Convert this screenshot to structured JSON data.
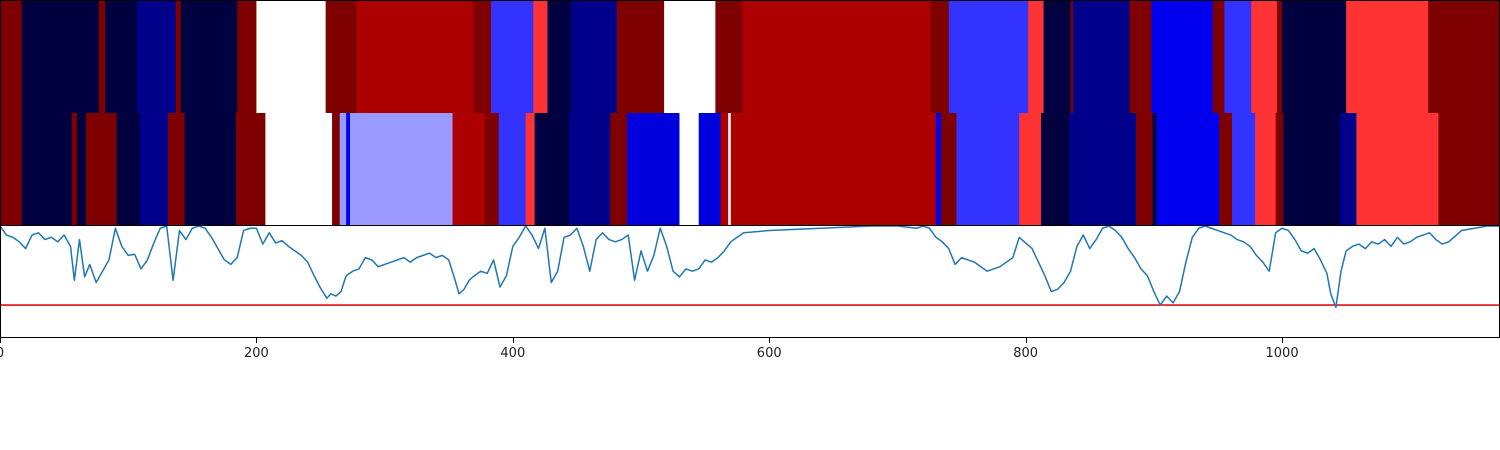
{
  "chart_data": [
    {
      "type": "heatmap",
      "name": "band-top",
      "xlim": [
        0,
        1170
      ],
      "segments": [
        {
          "start": 0,
          "end": 17,
          "color": "#7f0000"
        },
        {
          "start": 17,
          "end": 77,
          "color": "#000040"
        },
        {
          "start": 77,
          "end": 82,
          "color": "#7f0000"
        },
        {
          "start": 82,
          "end": 107,
          "color": "#000040"
        },
        {
          "start": 107,
          "end": 137,
          "color": "#00008b"
        },
        {
          "start": 137,
          "end": 141,
          "color": "#7f0000"
        },
        {
          "start": 141,
          "end": 185,
          "color": "#000040"
        },
        {
          "start": 185,
          "end": 200,
          "color": "#7f0000"
        },
        {
          "start": 200,
          "end": 254,
          "color": "#ffffff"
        },
        {
          "start": 254,
          "end": 278,
          "color": "#7f0000"
        },
        {
          "start": 278,
          "end": 369,
          "color": "#ad0000"
        },
        {
          "start": 369,
          "end": 383,
          "color": "#7f0000"
        },
        {
          "start": 383,
          "end": 416,
          "color": "#3333ff"
        },
        {
          "start": 416,
          "end": 427,
          "color": "#ff3333"
        },
        {
          "start": 427,
          "end": 445,
          "color": "#000040"
        },
        {
          "start": 445,
          "end": 481,
          "color": "#00008b"
        },
        {
          "start": 481,
          "end": 518,
          "color": "#7f0000"
        },
        {
          "start": 518,
          "end": 558,
          "color": "#ffffff"
        },
        {
          "start": 558,
          "end": 579,
          "color": "#7f0000"
        },
        {
          "start": 579,
          "end": 726,
          "color": "#ad0000"
        },
        {
          "start": 726,
          "end": 740,
          "color": "#7f0000"
        },
        {
          "start": 740,
          "end": 802,
          "color": "#3333ff"
        },
        {
          "start": 802,
          "end": 814,
          "color": "#ff3333"
        },
        {
          "start": 814,
          "end": 835,
          "color": "#000040"
        },
        {
          "start": 835,
          "end": 837,
          "color": "#7f0000"
        },
        {
          "start": 837,
          "end": 881,
          "color": "#00008b"
        },
        {
          "start": 881,
          "end": 898,
          "color": "#7f0000"
        },
        {
          "start": 898,
          "end": 946,
          "color": "#0000ee"
        },
        {
          "start": 946,
          "end": 955,
          "color": "#7f0000"
        },
        {
          "start": 955,
          "end": 976,
          "color": "#3333ff"
        },
        {
          "start": 976,
          "end": 996,
          "color": "#ff3333"
        },
        {
          "start": 996,
          "end": 1000,
          "color": "#7f0000"
        },
        {
          "start": 1000,
          "end": 1050,
          "color": "#000040"
        },
        {
          "start": 1050,
          "end": 1114,
          "color": "#ff3333"
        },
        {
          "start": 1114,
          "end": 1170,
          "color": "#7f0000"
        }
      ]
    },
    {
      "type": "heatmap",
      "name": "band-mid",
      "xlim": [
        0,
        1170
      ],
      "segments": [
        {
          "start": 0,
          "end": 17,
          "color": "#7f0000"
        },
        {
          "start": 17,
          "end": 56,
          "color": "#000040"
        },
        {
          "start": 56,
          "end": 60,
          "color": "#7f0000"
        },
        {
          "start": 60,
          "end": 67,
          "color": "#000040"
        },
        {
          "start": 67,
          "end": 70,
          "color": "#7f0000"
        },
        {
          "start": 70,
          "end": 91,
          "color": "#7f0000"
        },
        {
          "start": 91,
          "end": 109,
          "color": "#000040"
        },
        {
          "start": 109,
          "end": 131,
          "color": "#00008b"
        },
        {
          "start": 131,
          "end": 144,
          "color": "#7f0000"
        },
        {
          "start": 144,
          "end": 184,
          "color": "#000040"
        },
        {
          "start": 184,
          "end": 207,
          "color": "#7f0000"
        },
        {
          "start": 207,
          "end": 259,
          "color": "#ffffff"
        },
        {
          "start": 259,
          "end": 265,
          "color": "#7f0000"
        },
        {
          "start": 265,
          "end": 270,
          "color": "#9999ff"
        },
        {
          "start": 270,
          "end": 273,
          "color": "#0000ee"
        },
        {
          "start": 273,
          "end": 353,
          "color": "#9999ff"
        },
        {
          "start": 353,
          "end": 378,
          "color": "#ad0000"
        },
        {
          "start": 378,
          "end": 389,
          "color": "#7f0000"
        },
        {
          "start": 389,
          "end": 410,
          "color": "#3333ff"
        },
        {
          "start": 410,
          "end": 417,
          "color": "#ff3333"
        },
        {
          "start": 417,
          "end": 444,
          "color": "#000040"
        },
        {
          "start": 444,
          "end": 476,
          "color": "#00008b"
        },
        {
          "start": 476,
          "end": 489,
          "color": "#7f0000"
        },
        {
          "start": 489,
          "end": 530,
          "color": "#0000dd"
        },
        {
          "start": 530,
          "end": 545,
          "color": "#ffffff"
        },
        {
          "start": 545,
          "end": 562,
          "color": "#0000dd"
        },
        {
          "start": 562,
          "end": 568,
          "color": "#ad0000"
        },
        {
          "start": 568,
          "end": 570,
          "color": "#ffffff"
        },
        {
          "start": 570,
          "end": 730,
          "color": "#ad0000"
        },
        {
          "start": 730,
          "end": 734,
          "color": "#0000ee"
        },
        {
          "start": 734,
          "end": 746,
          "color": "#7f0000"
        },
        {
          "start": 746,
          "end": 795,
          "color": "#3333ff"
        },
        {
          "start": 795,
          "end": 812,
          "color": "#ff3333"
        },
        {
          "start": 812,
          "end": 834,
          "color": "#000040"
        },
        {
          "start": 834,
          "end": 886,
          "color": "#00008b"
        },
        {
          "start": 886,
          "end": 899,
          "color": "#7f0000"
        },
        {
          "start": 899,
          "end": 902,
          "color": "#000040"
        },
        {
          "start": 902,
          "end": 951,
          "color": "#0000ee"
        },
        {
          "start": 951,
          "end": 961,
          "color": "#7f0000"
        },
        {
          "start": 961,
          "end": 979,
          "color": "#3333ff"
        },
        {
          "start": 979,
          "end": 995,
          "color": "#ff3333"
        },
        {
          "start": 995,
          "end": 1001,
          "color": "#7f0000"
        },
        {
          "start": 1001,
          "end": 1045,
          "color": "#000040"
        },
        {
          "start": 1045,
          "end": 1058,
          "color": "#00008b"
        },
        {
          "start": 1058,
          "end": 1122,
          "color": "#ff3333"
        },
        {
          "start": 1122,
          "end": 1170,
          "color": "#7f0000"
        }
      ]
    },
    {
      "type": "line",
      "name": "line-panel",
      "xlim": [
        0,
        1170
      ],
      "ylim": [
        0,
        1
      ],
      "threshold": 0.3,
      "threshold_color": "#e01010",
      "line_color": "#1f77b4",
      "x": [
        0,
        5,
        10,
        15,
        20,
        25,
        30,
        35,
        40,
        45,
        50,
        55,
        58,
        62,
        66,
        70,
        75,
        80,
        85,
        90,
        95,
        100,
        105,
        110,
        115,
        120,
        125,
        130,
        135,
        140,
        145,
        150,
        155,
        160,
        165,
        170,
        175,
        180,
        185,
        190,
        195,
        200,
        205,
        210,
        215,
        220,
        225,
        230,
        235,
        240,
        245,
        250,
        255,
        258,
        262,
        266,
        270,
        275,
        280,
        285,
        290,
        295,
        300,
        305,
        310,
        315,
        320,
        325,
        330,
        335,
        340,
        345,
        350,
        355,
        358,
        362,
        366,
        370,
        375,
        380,
        385,
        390,
        395,
        400,
        405,
        410,
        415,
        420,
        425,
        430,
        435,
        440,
        445,
        450,
        455,
        460,
        465,
        470,
        475,
        480,
        485,
        490,
        495,
        500,
        505,
        510,
        515,
        520,
        525,
        530,
        535,
        540,
        545,
        550,
        555,
        560,
        565,
        570,
        575,
        580,
        600,
        640,
        680,
        700,
        715,
        720,
        725,
        730,
        735,
        740,
        745,
        750,
        760,
        770,
        780,
        790,
        795,
        800,
        805,
        810,
        815,
        820,
        825,
        830,
        835,
        840,
        845,
        850,
        855,
        860,
        865,
        870,
        875,
        880,
        885,
        890,
        895,
        900,
        905,
        910,
        915,
        920,
        925,
        930,
        935,
        940,
        945,
        950,
        955,
        960,
        965,
        970,
        975,
        980,
        985,
        990,
        995,
        1000,
        1005,
        1010,
        1015,
        1020,
        1025,
        1030,
        1035,
        1038,
        1042,
        1046,
        1050,
        1055,
        1060,
        1065,
        1070,
        1075,
        1080,
        1085,
        1090,
        1095,
        1100,
        1105,
        1110,
        1115,
        1120,
        1125,
        1130,
        1140,
        1150,
        1160,
        1170
      ],
      "y": [
        1.0,
        0.92,
        0.9,
        0.86,
        0.8,
        0.92,
        0.94,
        0.88,
        0.9,
        0.86,
        0.92,
        0.82,
        0.52,
        0.88,
        0.55,
        0.66,
        0.5,
        0.6,
        0.7,
        0.98,
        0.82,
        0.74,
        0.75,
        0.62,
        0.7,
        0.85,
        0.98,
        1.0,
        0.52,
        0.96,
        0.88,
        0.98,
        1.0,
        0.98,
        0.9,
        0.8,
        0.7,
        0.66,
        0.72,
        0.96,
        0.98,
        0.98,
        0.84,
        0.94,
        0.85,
        0.87,
        0.82,
        0.78,
        0.74,
        0.68,
        0.56,
        0.45,
        0.36,
        0.4,
        0.38,
        0.42,
        0.56,
        0.6,
        0.62,
        0.72,
        0.7,
        0.64,
        0.66,
        0.68,
        0.7,
        0.72,
        0.68,
        0.72,
        0.74,
        0.76,
        0.72,
        0.74,
        0.7,
        0.52,
        0.4,
        0.44,
        0.52,
        0.56,
        0.6,
        0.58,
        0.7,
        0.46,
        0.56,
        0.82,
        0.9,
        1.0,
        0.92,
        0.8,
        0.98,
        0.5,
        0.6,
        0.9,
        0.92,
        0.98,
        0.82,
        0.6,
        0.88,
        0.94,
        0.88,
        0.86,
        0.88,
        0.92,
        0.52,
        0.78,
        0.6,
        0.74,
        0.98,
        0.82,
        0.6,
        0.55,
        0.62,
        0.6,
        0.62,
        0.7,
        0.68,
        0.72,
        0.78,
        0.86,
        0.9,
        0.94,
        0.96,
        0.98,
        1.0,
        1.0,
        0.98,
        1.0,
        0.98,
        0.9,
        0.86,
        0.8,
        0.66,
        0.72,
        0.68,
        0.6,
        0.64,
        0.72,
        0.9,
        0.85,
        0.8,
        0.68,
        0.56,
        0.42,
        0.44,
        0.5,
        0.6,
        0.82,
        0.92,
        0.8,
        0.88,
        0.98,
        1.0,
        0.96,
        0.9,
        0.8,
        0.72,
        0.62,
        0.56,
        0.42,
        0.3,
        0.38,
        0.32,
        0.42,
        0.68,
        0.9,
        0.98,
        1.0,
        0.98,
        0.96,
        0.94,
        0.92,
        0.88,
        0.86,
        0.82,
        0.74,
        0.68,
        0.6,
        0.94,
        0.98,
        0.96,
        0.88,
        0.78,
        0.76,
        0.8,
        0.7,
        0.58,
        0.4,
        0.28,
        0.6,
        0.78,
        0.82,
        0.84,
        0.8,
        0.86,
        0.84,
        0.88,
        0.82,
        0.9,
        0.84,
        0.86,
        0.9,
        0.92,
        0.94,
        0.88,
        0.84,
        0.86,
        0.96,
        0.98,
        1.0,
        1.0
      ]
    }
  ],
  "axis": {
    "ticks": [
      0,
      200,
      400,
      600,
      800,
      1000
    ],
    "tick_labels": [
      "0",
      "200",
      "400",
      "600",
      "800",
      "1000"
    ]
  }
}
